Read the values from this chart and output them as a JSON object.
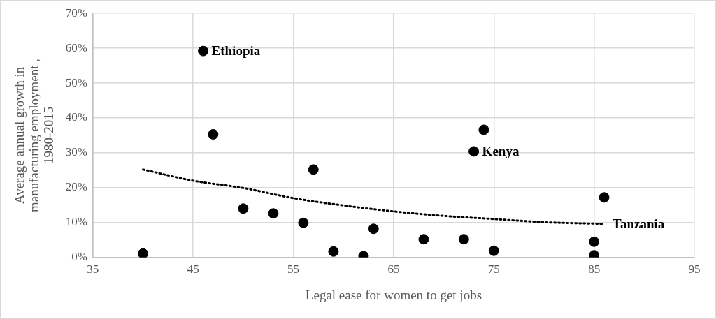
{
  "chart_data": {
    "type": "scatter",
    "xlabel": "Legal ease for women to get jobs",
    "ylabel": "Average annual growth in\nmanufacturing employment ,\n1980-2015",
    "xlim": [
      35,
      95
    ],
    "xticks": [
      35,
      45,
      55,
      65,
      75,
      85,
      95
    ],
    "ylim": [
      0,
      70
    ],
    "yticks": [
      {
        "value": 0,
        "label": "0%"
      },
      {
        "value": 10,
        "label": "10%"
      },
      {
        "value": 20,
        "label": "20%"
      },
      {
        "value": 30,
        "label": "30%"
      },
      {
        "value": 40,
        "label": "40%"
      },
      {
        "value": 50,
        "label": "50%"
      },
      {
        "value": 60,
        "label": "60%"
      },
      {
        "value": 70,
        "label": "70%"
      }
    ],
    "grid": true,
    "legend": false,
    "marker": "circle",
    "series": [
      {
        "type": "scatter",
        "color": "#000000",
        "x": [
          40,
          46,
          47,
          50,
          53,
          56,
          57,
          59,
          62,
          63,
          68,
          72,
          73,
          74,
          75,
          85,
          85,
          86
        ],
        "values": [
          1.1,
          59.2,
          35.3,
          14.0,
          12.6,
          9.9,
          25.2,
          1.7,
          0.4,
          8.2,
          5.2,
          5.2,
          30.4,
          36.6,
          1.9,
          4.5,
          0.6,
          17.2
        ]
      },
      {
        "type": "line",
        "color": "#000000",
        "line_style": "dotted",
        "marker": "none",
        "x": [
          40,
          45,
          50,
          55,
          60,
          65,
          70,
          75,
          80,
          86
        ],
        "values": [
          25.2,
          22.0,
          19.9,
          17.0,
          14.9,
          13.2,
          11.9,
          11.0,
          10.1,
          9.6
        ]
      }
    ],
    "annotations": [
      {
        "text": "Ethiopia",
        "x": 46,
        "y": 59.2
      },
      {
        "text": "Kenya",
        "x": 73,
        "y": 30.4
      },
      {
        "text": "Tanzania",
        "x": 86,
        "y": 9.6
      }
    ]
  }
}
